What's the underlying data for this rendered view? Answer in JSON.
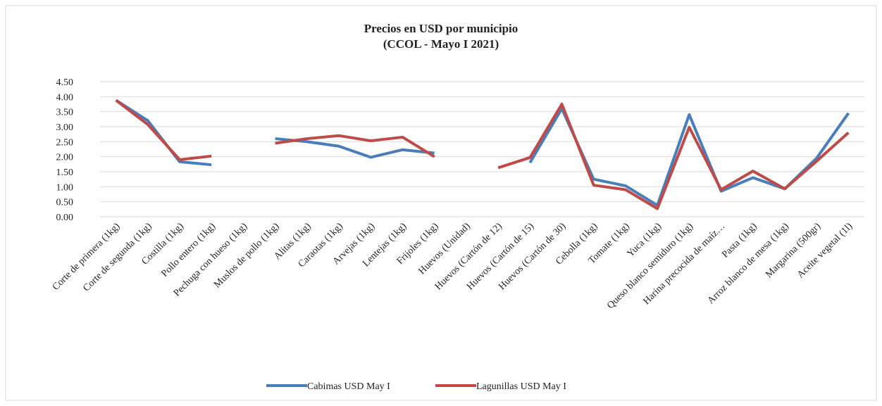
{
  "chart_data": {
    "type": "line",
    "title": "Precios en USD por municipio",
    "subtitle": "(CCOL - Mayo I 2021)",
    "categories": [
      "Corte de primera (1kg)",
      "Corte de segunda (1kg)",
      "Costilla (1kg)",
      "Pollo entero (1kg)",
      "Pechuga con hueso (1kg)",
      "Muslos de pollo (1kg)",
      "Alitas (1kg)",
      "Caraotas (1kg)",
      "Arvejas (1kg)",
      "Lentejas (1kg)",
      "Frijoles (1kg)",
      "Huevos (Unidad)",
      "Huevos (Cartón de 12)",
      "Huevos (Cartón de 15)",
      "Huevos (Cartón de 30)",
      "Cebolla (1kg)",
      "Tomate (1kg)",
      "Yuca (1kg)",
      "Queso blanco semiduro (1kg)",
      "Harina precocida de maíz…",
      "Pasta (1kg)",
      "Arroz blanco de mesa (1kg)",
      "Margarina (500gr)",
      "Aceite vegetal (1l)"
    ],
    "series": [
      {
        "name": "Cabimas USD May I",
        "color": "#4a7ebb",
        "values": [
          3.88,
          3.2,
          1.83,
          1.73,
          null,
          2.6,
          2.5,
          2.35,
          1.98,
          2.23,
          2.12,
          null,
          null,
          1.8,
          3.6,
          1.25,
          1.03,
          0.38,
          3.4,
          0.85,
          1.3,
          0.93,
          1.95,
          3.45
        ]
      },
      {
        "name": "Lagunillas USD May I",
        "color": "#be4b48",
        "values": [
          3.88,
          3.07,
          1.9,
          2.02,
          null,
          2.45,
          2.6,
          2.7,
          2.53,
          2.65,
          2.0,
          null,
          1.63,
          1.97,
          3.75,
          1.05,
          0.9,
          0.27,
          2.98,
          0.9,
          1.52,
          0.93,
          1.85,
          2.8
        ]
      }
    ],
    "ylim": [
      0,
      4.5
    ],
    "yticks": [
      {
        "value": 0,
        "label": "0.00"
      },
      {
        "value": 0.5,
        "label": "0.50"
      },
      {
        "value": 1,
        "label": "1.00"
      },
      {
        "value": 1.5,
        "label": "1.50"
      },
      {
        "value": 2,
        "label": "2.00"
      },
      {
        "value": 2.5,
        "label": "2.50"
      },
      {
        "value": 3,
        "label": "3.00"
      },
      {
        "value": 3.5,
        "label": "3.50"
      },
      {
        "value": 4,
        "label": "4.00"
      },
      {
        "value": 4.5,
        "label": "4.50"
      }
    ],
    "grid": true,
    "legend": "bottom"
  }
}
